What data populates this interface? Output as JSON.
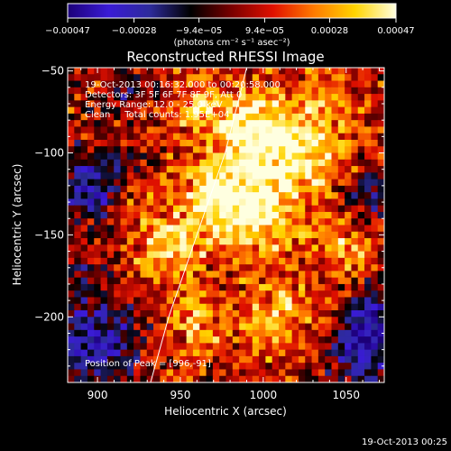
{
  "chart_data": {
    "type": "heatmap",
    "title": "Reconstructed RHESSI Image",
    "xlabel": "Heliocentric X (arcsec)",
    "ylabel": "Heliocentric Y (arcsec)",
    "xlim": [
      882,
      1073
    ],
    "ylim": [
      -240,
      -48
    ],
    "x_ticks": [
      900,
      950,
      1000,
      1050
    ],
    "y_ticks": [
      -200,
      -150,
      -100,
      -50
    ],
    "x_tick_labels": [
      "900",
      "950",
      "1000",
      "1050"
    ],
    "y_tick_labels": [
      "−200",
      "−150",
      "−100",
      "−50"
    ],
    "colorbar": {
      "min": -0.00047,
      "max": 0.00047,
      "ticks": [
        -0.00047,
        -0.00028,
        -9.4e-05,
        9.4e-05,
        0.00028,
        0.00047
      ],
      "tick_labels": [
        "−0.00047",
        "−0.00028",
        "−9.4e−05",
        "9.4e−05",
        "0.00028",
        "0.00047"
      ],
      "unit_label": "(photons cm⁻² s⁻¹ asec⁻²)",
      "colors": [
        "#1c0078",
        "#3a1bd6",
        "#2d2b9b",
        "#000000",
        "#7a0000",
        "#e01000",
        "#ff7a00",
        "#ffd400",
        "#ffffe0"
      ]
    },
    "annotations": [
      "19-Oct-2013 00:16:32.000 to 00:20:58.000",
      "Detectors: 3F 5F 6F 7F 8F 9F, Att 0",
      "Energy Range: 12.0 - 25.0 keV",
      "Clean     Total counts: 1.95E+04"
    ],
    "peak_label": "Position of Peak = [996,-91]",
    "peak": {
      "x": 996,
      "y": -91
    },
    "limb_line": [
      [
        932,
        -240
      ],
      [
        943,
        -200
      ],
      [
        960,
        -150
      ],
      [
        977,
        -100
      ],
      [
        990,
        -48
      ]
    ],
    "hot_spots": [
      {
        "x": 996,
        "y": -91,
        "r": 26,
        "v": 1.0
      },
      {
        "x": 970,
        "y": -128,
        "r": 22,
        "v": 0.75
      },
      {
        "x": 1000,
        "y": -140,
        "r": 24,
        "v": 0.7
      },
      {
        "x": 1030,
        "y": -105,
        "r": 22,
        "v": 0.55
      },
      {
        "x": 945,
        "y": -160,
        "r": 20,
        "v": 0.6
      },
      {
        "x": 1010,
        "y": -200,
        "r": 22,
        "v": 0.55
      },
      {
        "x": 960,
        "y": -205,
        "r": 18,
        "v": 0.5
      },
      {
        "x": 1050,
        "y": -160,
        "r": 18,
        "v": 0.45
      },
      {
        "x": 920,
        "y": -135,
        "r": 16,
        "v": 0.35
      },
      {
        "x": 1040,
        "y": -70,
        "r": 18,
        "v": 0.4
      },
      {
        "x": 960,
        "y": -70,
        "r": 16,
        "v": 0.45
      }
    ],
    "cold_spots": [
      {
        "x": 895,
        "y": -120,
        "r": 22,
        "v": -0.8
      },
      {
        "x": 900,
        "y": -215,
        "r": 24,
        "v": -0.9
      },
      {
        "x": 1060,
        "y": -220,
        "r": 22,
        "v": -0.8
      },
      {
        "x": 1070,
        "y": -195,
        "r": 18,
        "v": -0.6
      },
      {
        "x": 1065,
        "y": -125,
        "r": 16,
        "v": -0.5
      },
      {
        "x": 890,
        "y": -175,
        "r": 14,
        "v": -0.4
      },
      {
        "x": 920,
        "y": -60,
        "r": 14,
        "v": -0.4
      }
    ]
  },
  "footer": {
    "timestamp": "19-Oct-2013 00:25"
  }
}
